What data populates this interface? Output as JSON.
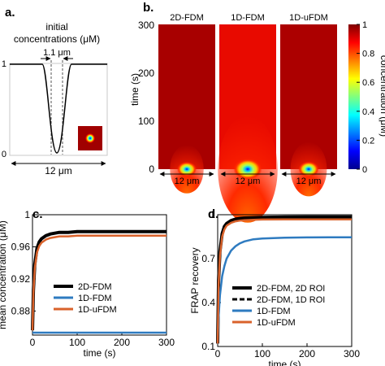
{
  "panel_a": {
    "label": "a.",
    "title_line1": "initial",
    "title_line2": "concentrations (μM)",
    "width_annotation": "1.1 μm",
    "x_extent_label": "12 μm",
    "ytick_top": "1",
    "ytick_bottom": "0"
  },
  "panel_b": {
    "label": "b.",
    "ylabel": "time (s)",
    "yticks": [
      "0",
      "100",
      "200",
      "300"
    ],
    "x_extent_label": "12 μm",
    "maps": [
      {
        "name": "2D-FDM",
        "spot_spread": 0.22
      },
      {
        "name": "1D-FDM",
        "spot_spread": 0.62
      },
      {
        "name": "1D-uFDM",
        "spot_spread": 0.26
      }
    ],
    "colorbar": {
      "label": "concentration (μM)",
      "ticks": [
        "0",
        "0.2",
        "0.4",
        "0.6",
        "0.8",
        "1"
      ],
      "range": [
        0,
        1
      ]
    }
  },
  "panel_c": {
    "label": "c.",
    "colors": {
      "2D-FDM": "#000000",
      "1D-FDM": "#2e7bc0",
      "1D-uFDM": "#d9622b"
    }
  },
  "panel_d": {
    "label": "d.",
    "colors": {
      "2D-FDM, 2D ROI": "#000000",
      "2D-FDM, 1D ROI": "#000000",
      "1D-FDM": "#2e7bc0",
      "1D-uFDM": "#d9622b"
    }
  },
  "chart_data": [
    {
      "type": "line",
      "panel": "c.",
      "title": "",
      "xlabel": "time (s)",
      "ylabel": "mean concentration (μM)",
      "xlim": [
        0,
        300
      ],
      "ylim": [
        0.85,
        1.0
      ],
      "xticks": [
        "0",
        "100",
        "200",
        "300"
      ],
      "yticks": [
        "0.88",
        "0.92",
        "0.96",
        "1"
      ],
      "legend_position": "center-right",
      "series": [
        {
          "name": "2D-FDM",
          "x": [
            0,
            2,
            5,
            10,
            15,
            20,
            30,
            40,
            50,
            60,
            80,
            100,
            150,
            200,
            250,
            300
          ],
          "values": [
            0.856,
            0.905,
            0.938,
            0.958,
            0.966,
            0.97,
            0.974,
            0.976,
            0.977,
            0.978,
            0.978,
            0.979,
            0.979,
            0.979,
            0.979,
            0.979
          ]
        },
        {
          "name": "1D-FDM",
          "x": [
            0,
            300
          ],
          "values": [
            0.853,
            0.853
          ]
        },
        {
          "name": "1D-uFDM",
          "x": [
            0,
            2,
            5,
            10,
            15,
            20,
            30,
            40,
            50,
            60,
            80,
            100,
            150,
            200,
            250,
            300
          ],
          "values": [
            0.856,
            0.902,
            0.933,
            0.953,
            0.961,
            0.965,
            0.969,
            0.971,
            0.972,
            0.973,
            0.973,
            0.974,
            0.974,
            0.974,
            0.974,
            0.974
          ]
        }
      ]
    },
    {
      "type": "line",
      "panel": "d.",
      "title": "",
      "xlabel": "time (s)",
      "ylabel": "FRAP recovery",
      "xlim": [
        0,
        300
      ],
      "ylim": [
        0.1,
        1.0
      ],
      "xticks": [
        "0",
        "100",
        "200",
        "300"
      ],
      "yticks": [
        "0.1",
        "0.4",
        "0.7",
        "1"
      ],
      "legend_position": "bottom-center",
      "series": [
        {
          "name": "2D-FDM, 2D ROI",
          "x": [
            0,
            2,
            5,
            10,
            15,
            20,
            30,
            40,
            50,
            60,
            80,
            100,
            150,
            200,
            250,
            300
          ],
          "values": [
            0.12,
            0.55,
            0.75,
            0.87,
            0.92,
            0.94,
            0.96,
            0.97,
            0.975,
            0.978,
            0.98,
            0.982,
            0.984,
            0.985,
            0.985,
            0.985
          ]
        },
        {
          "name": "2D-FDM, 1D ROI",
          "x": [
            0,
            2,
            5,
            10,
            15,
            20,
            30,
            40,
            50,
            60,
            80,
            100,
            150,
            200,
            250,
            300
          ],
          "values": [
            0.12,
            0.55,
            0.74,
            0.86,
            0.91,
            0.93,
            0.955,
            0.965,
            0.97,
            0.973,
            0.975,
            0.976,
            0.977,
            0.977,
            0.977,
            0.977
          ]
        },
        {
          "name": "1D-FDM",
          "x": [
            0,
            2,
            5,
            10,
            15,
            20,
            30,
            40,
            50,
            60,
            80,
            100,
            150,
            200,
            250,
            300
          ],
          "values": [
            0.12,
            0.3,
            0.45,
            0.58,
            0.65,
            0.7,
            0.755,
            0.785,
            0.805,
            0.818,
            0.832,
            0.838,
            0.843,
            0.845,
            0.846,
            0.846
          ]
        },
        {
          "name": "1D-uFDM",
          "x": [
            0,
            2,
            5,
            10,
            15,
            20,
            30,
            40,
            50,
            60,
            80,
            100,
            150,
            200,
            250,
            300
          ],
          "values": [
            0.12,
            0.52,
            0.72,
            0.85,
            0.9,
            0.925,
            0.945,
            0.955,
            0.96,
            0.963,
            0.965,
            0.967,
            0.968,
            0.968,
            0.968,
            0.968
          ]
        }
      ]
    }
  ]
}
